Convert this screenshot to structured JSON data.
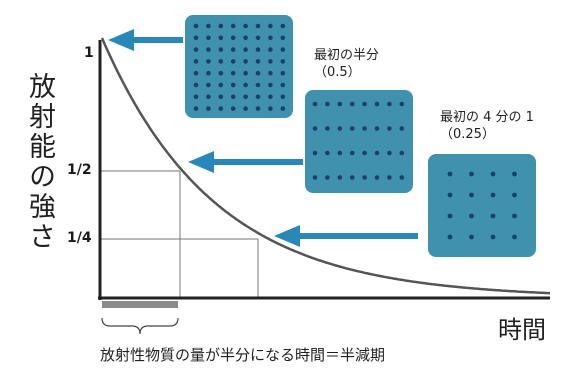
{
  "y_axis_label": "放射能の強さ",
  "x_axis_label": "時間",
  "ticks": {
    "one": "1",
    "half": "1/2",
    "quarter": "1/4"
  },
  "annotations": {
    "half": {
      "line1": "最初の半分",
      "line2": "（0.5）"
    },
    "quarter": {
      "line1": "最初の 4 分の 1",
      "line2": "（0.25）"
    }
  },
  "caption": "放射性物質の量が半分になる時間＝半減期",
  "colors": {
    "box": "#3f91ad",
    "dot": "#1c3e70",
    "arrow": "#2a88b8",
    "curve": "#555555"
  },
  "dot_grids": {
    "full": 64,
    "half": 32,
    "quarter": 16
  }
}
